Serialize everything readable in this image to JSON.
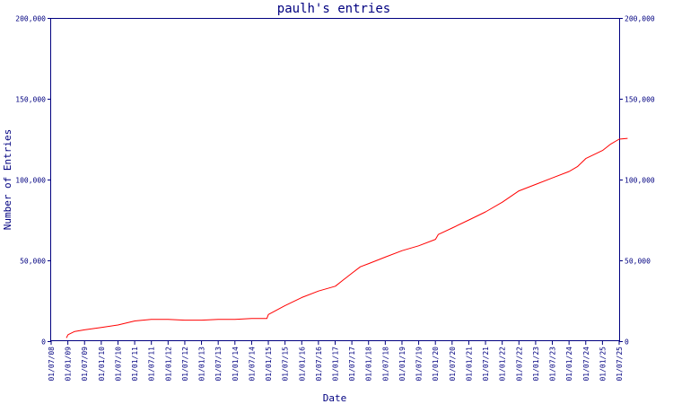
{
  "colors": {
    "axis": "#000080",
    "text": "#000080",
    "line": "#ff0000",
    "background": "#ffffff"
  },
  "chart_data": {
    "type": "line",
    "title": "paulh's entries",
    "xlabel": "Date",
    "ylabel": "Number of Entries",
    "ylim": [
      0,
      200000
    ],
    "y_ticks": [
      0,
      50000,
      100000,
      150000,
      200000
    ],
    "y_tick_labels": [
      "0",
      "50,000",
      "100,000",
      "150,000",
      "200,000"
    ],
    "y_axis_right": true,
    "grid": false,
    "xlim": [
      "2008-07-01",
      "2025-07-01"
    ],
    "x_tick_labels": [
      "01/07/08",
      "01/01/09",
      "01/07/09",
      "01/01/10",
      "01/07/10",
      "01/01/11",
      "01/07/11",
      "01/01/12",
      "01/07/12",
      "01/01/13",
      "01/07/13",
      "01/01/14",
      "01/07/14",
      "01/01/15",
      "01/07/15",
      "01/01/16",
      "01/07/16",
      "01/01/17",
      "01/07/17",
      "01/01/18",
      "01/07/18",
      "01/01/19",
      "01/07/19",
      "01/01/20",
      "01/07/20",
      "01/01/21",
      "01/07/21",
      "01/01/22",
      "01/07/22",
      "01/01/23",
      "01/07/23",
      "01/01/24",
      "01/07/24",
      "01/01/25",
      "01/07/25"
    ],
    "series": [
      {
        "color": "#ff0000",
        "points": [
          {
            "x": "2008-12-15",
            "y": 2000
          },
          {
            "x": "2009-01-01",
            "y": 4000
          },
          {
            "x": "2009-03-15",
            "y": 6000
          },
          {
            "x": "2009-07-01",
            "y": 7000
          },
          {
            "x": "2010-01-01",
            "y": 8500
          },
          {
            "x": "2010-07-01",
            "y": 10000
          },
          {
            "x": "2011-01-01",
            "y": 12500
          },
          {
            "x": "2011-07-01",
            "y": 13500
          },
          {
            "x": "2012-01-01",
            "y": 13500
          },
          {
            "x": "2012-07-01",
            "y": 13000
          },
          {
            "x": "2013-01-01",
            "y": 13000
          },
          {
            "x": "2013-07-01",
            "y": 13500
          },
          {
            "x": "2014-01-01",
            "y": 13500
          },
          {
            "x": "2014-07-01",
            "y": 14000
          },
          {
            "x": "2014-12-15",
            "y": 14000
          },
          {
            "x": "2015-01-01",
            "y": 16500
          },
          {
            "x": "2015-07-01",
            "y": 22000
          },
          {
            "x": "2016-01-01",
            "y": 27000
          },
          {
            "x": "2016-07-01",
            "y": 31000
          },
          {
            "x": "2017-01-01",
            "y": 34000
          },
          {
            "x": "2017-04-01",
            "y": 38000
          },
          {
            "x": "2017-07-01",
            "y": 42000
          },
          {
            "x": "2017-10-01",
            "y": 46000
          },
          {
            "x": "2018-01-01",
            "y": 48000
          },
          {
            "x": "2018-07-01",
            "y": 52000
          },
          {
            "x": "2019-01-01",
            "y": 56000
          },
          {
            "x": "2019-07-01",
            "y": 59000
          },
          {
            "x": "2020-01-01",
            "y": 63000
          },
          {
            "x": "2020-02-01",
            "y": 66000
          },
          {
            "x": "2020-07-01",
            "y": 70000
          },
          {
            "x": "2021-01-01",
            "y": 75000
          },
          {
            "x": "2021-07-01",
            "y": 80000
          },
          {
            "x": "2022-01-01",
            "y": 86000
          },
          {
            "x": "2022-07-01",
            "y": 93000
          },
          {
            "x": "2023-01-01",
            "y": 97000
          },
          {
            "x": "2023-07-01",
            "y": 101000
          },
          {
            "x": "2024-01-01",
            "y": 105000
          },
          {
            "x": "2024-04-01",
            "y": 108000
          },
          {
            "x": "2024-07-01",
            "y": 113000
          },
          {
            "x": "2025-01-01",
            "y": 118000
          },
          {
            "x": "2025-04-01",
            "y": 122000
          },
          {
            "x": "2025-07-01",
            "y": 125000
          },
          {
            "x": "2025-10-01",
            "y": 125500
          }
        ]
      }
    ]
  }
}
